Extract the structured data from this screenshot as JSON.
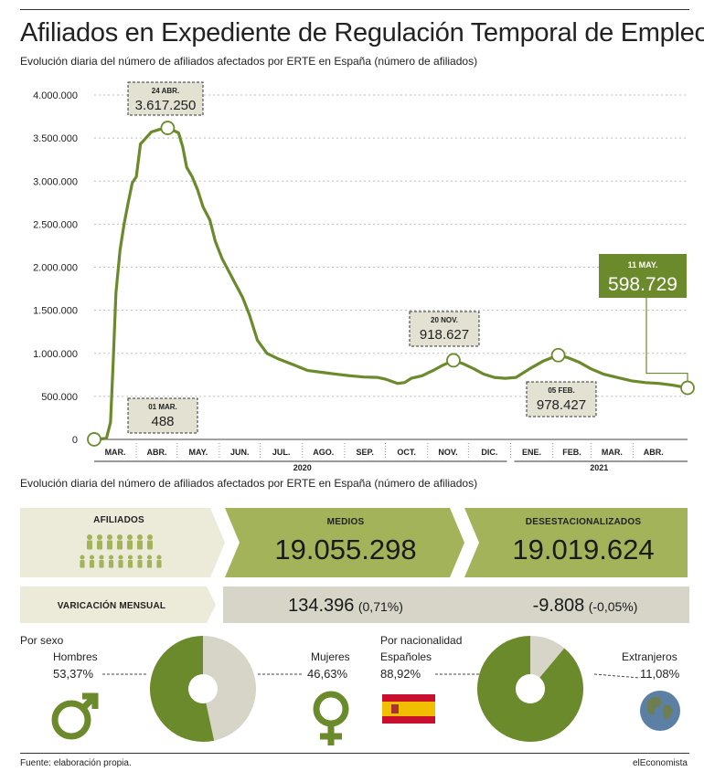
{
  "title": "Afiliados en Expediente de Regulación Temporal de Empleo",
  "subtitle": "Evolución diaria del número de afiliados afectados por ERTE en España (número de afiliados)",
  "subtitle2": "Evolución diaria del número de afiliados afectados por ERTE en España (número de afiliados)",
  "chart_data": {
    "type": "line",
    "title": "Afiliados en Expediente de Regulación Temporal de Empleo",
    "subtitle": "Evolución diaria del número de afiliados afectados por ERTE en España (número de afiliados)",
    "y_ticks": [
      "0",
      "500.000",
      "1.000.000",
      "1.500.000",
      "2.000.000",
      "2.500.000",
      "3.000.000",
      "3.500.000",
      "4.000.000"
    ],
    "ylim": [
      0,
      4000000
    ],
    "x_ticks": [
      "MAR.",
      "ABR.",
      "MAY.",
      "JUN.",
      "JUL.",
      "AGO.",
      "SEP.",
      "OCT.",
      "NOV.",
      "DIC.",
      "ENE.",
      "FEB.",
      "MAR.",
      "ABR."
    ],
    "years": [
      "2020",
      "2021"
    ],
    "xlim": [
      "2020-03-01",
      "2021-05-11"
    ],
    "series": [
      {
        "points": [
          [
            "2020-03-01",
            488
          ],
          [
            "2020-03-10",
            12000
          ],
          [
            "2020-03-13",
            200000
          ],
          [
            "2020-03-15",
            900000
          ],
          [
            "2020-03-17",
            1700000
          ],
          [
            "2020-03-20",
            2200000
          ],
          [
            "2020-03-23",
            2500000
          ],
          [
            "2020-03-26",
            2750000
          ],
          [
            "2020-03-29",
            2980000
          ],
          [
            "2020-04-01",
            3050000
          ],
          [
            "2020-04-04",
            3430000
          ],
          [
            "2020-04-08",
            3500000
          ],
          [
            "2020-04-12",
            3570000
          ],
          [
            "2020-04-18",
            3600000
          ],
          [
            "2020-04-24",
            3617250
          ],
          [
            "2020-04-28",
            3590000
          ],
          [
            "2020-05-02",
            3560000
          ],
          [
            "2020-05-05",
            3400000
          ],
          [
            "2020-05-08",
            3160000
          ],
          [
            "2020-05-12",
            3050000
          ],
          [
            "2020-05-16",
            2900000
          ],
          [
            "2020-05-20",
            2700000
          ],
          [
            "2020-05-25",
            2550000
          ],
          [
            "2020-05-29",
            2300000
          ],
          [
            "2020-06-03",
            2100000
          ],
          [
            "2020-06-08",
            1950000
          ],
          [
            "2020-06-13",
            1800000
          ],
          [
            "2020-06-18",
            1650000
          ],
          [
            "2020-06-23",
            1450000
          ],
          [
            "2020-06-29",
            1150000
          ],
          [
            "2020-07-06",
            1000000
          ],
          [
            "2020-07-15",
            930000
          ],
          [
            "2020-07-25",
            870000
          ],
          [
            "2020-08-05",
            800000
          ],
          [
            "2020-08-15",
            780000
          ],
          [
            "2020-08-25",
            760000
          ],
          [
            "2020-09-05",
            740000
          ],
          [
            "2020-09-15",
            725000
          ],
          [
            "2020-09-25",
            720000
          ],
          [
            "2020-10-01",
            700000
          ],
          [
            "2020-10-10",
            650000
          ],
          [
            "2020-10-15",
            660000
          ],
          [
            "2020-10-20",
            710000
          ],
          [
            "2020-10-28",
            740000
          ],
          [
            "2020-11-05",
            800000
          ],
          [
            "2020-11-12",
            860000
          ],
          [
            "2020-11-20",
            918627
          ],
          [
            "2020-11-27",
            880000
          ],
          [
            "2020-12-05",
            820000
          ],
          [
            "2020-12-12",
            760000
          ],
          [
            "2020-12-20",
            720000
          ],
          [
            "2020-12-28",
            710000
          ],
          [
            "2021-01-05",
            720000
          ],
          [
            "2021-01-15",
            820000
          ],
          [
            "2021-01-25",
            910000
          ],
          [
            "2021-02-05",
            978427
          ],
          [
            "2021-02-12",
            950000
          ],
          [
            "2021-02-20",
            900000
          ],
          [
            "2021-03-01",
            820000
          ],
          [
            "2021-03-10",
            760000
          ],
          [
            "2021-03-20",
            720000
          ],
          [
            "2021-03-31",
            680000
          ],
          [
            "2021-04-10",
            660000
          ],
          [
            "2021-04-20",
            650000
          ],
          [
            "2021-04-30",
            630000
          ],
          [
            "2021-05-11",
            598729
          ]
        ]
      }
    ],
    "annotations": [
      {
        "date_label": "24 ABR.",
        "value_label": "3.617.250",
        "x": "2020-04-24",
        "y": 3617250
      },
      {
        "date_label": "20 NOV.",
        "value_label": "918.627",
        "x": "2020-11-20",
        "y": 918627
      },
      {
        "date_label": "05 FEB.",
        "value_label": "978.427",
        "x": "2021-02-05",
        "y": 978427
      },
      {
        "date_label": "01 MAR.",
        "value_label": "488",
        "x": "2020-03-01",
        "y": 488
      },
      {
        "date_label": "11 MAY.",
        "value_label": "598.729",
        "x": "2021-05-11",
        "y": 598729
      }
    ],
    "grid": true,
    "line_color": "#6b8a2c"
  },
  "affiliates": {
    "label": "AFILIADOS",
    "medios_label": "MEDIOS",
    "medios_value": "19.055.298",
    "desest_label": "DESESTACIONALIZADOS",
    "desest_value": "19.019.624",
    "var_label": "VARICACIÓN MENSUAL",
    "var_medios_num": "134.396",
    "var_medios_pct": "(0,71%)",
    "var_desest_num": "-9.808",
    "var_desest_pct": "(-0,05%)"
  },
  "sexo": {
    "heading": "Por sexo",
    "hombres_label": "Hombres",
    "hombres_pct": "53,37%",
    "hombres_value": 53.37,
    "mujeres_label": "Mujeres",
    "mujeres_pct": "46,63%",
    "mujeres_value": 46.63
  },
  "nacionalidad": {
    "heading": "Por nacionalidad",
    "espanoles_label": "Españoles",
    "espanoles_pct": "88,92%",
    "espanoles_value": 88.92,
    "extranjeros_label": "Extranjeros",
    "extranjeros_pct": "11,08%",
    "extranjeros_value": 11.08
  },
  "colors": {
    "olive_dark": "#6b8a2c",
    "olive_mid": "#a3b35a",
    "olive_light": "#c5cf88",
    "beige": "#ecead8",
    "grey_light": "#d6d5c8",
    "annotation_bg": "#e3e1d2"
  },
  "footer": {
    "source": "Fuente: elaboración propia.",
    "brand": "elEconomista"
  }
}
